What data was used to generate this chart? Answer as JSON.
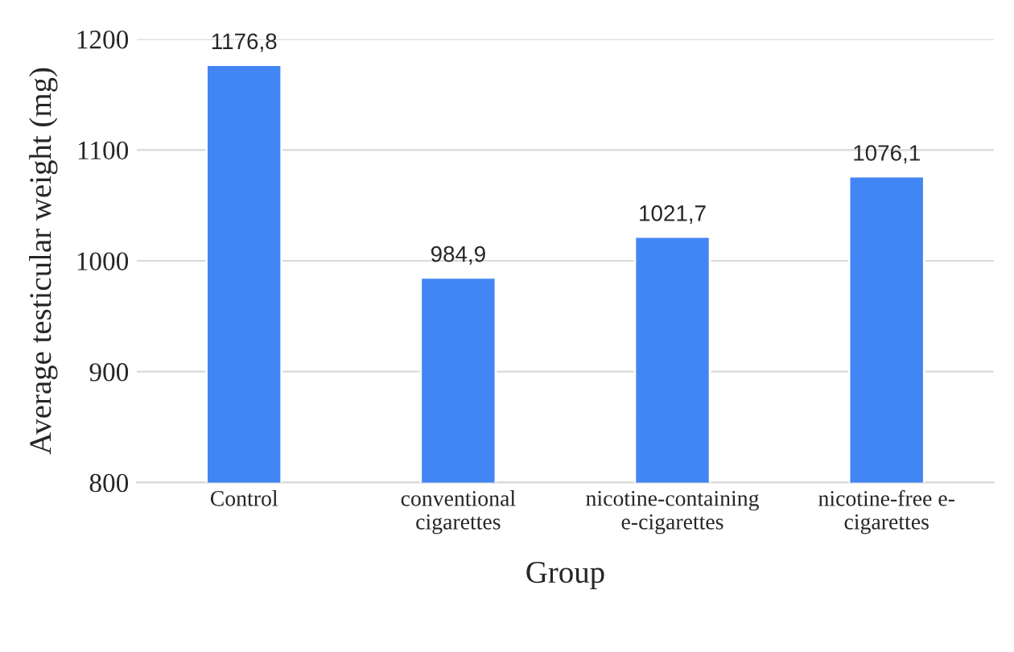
{
  "chart_data": {
    "type": "bar",
    "xlabel": "Group",
    "ylabel": "Average testicular weight (mg)",
    "categories": [
      "Control",
      "conventional\ncigarettes",
      "nicotine-containing\ne-cigarettes",
      "nicotine-free e-\ncigarettes"
    ],
    "values": [
      1176.8,
      984.9,
      1021.7,
      1076.1
    ],
    "value_labels": [
      "1176,8",
      "984,9",
      "1021,7",
      "1076,1"
    ],
    "color": "#4285f4",
    "ylim": [
      800,
      1200
    ],
    "yticks": [
      800,
      900,
      1000,
      1100,
      1200
    ],
    "grid": "y"
  }
}
